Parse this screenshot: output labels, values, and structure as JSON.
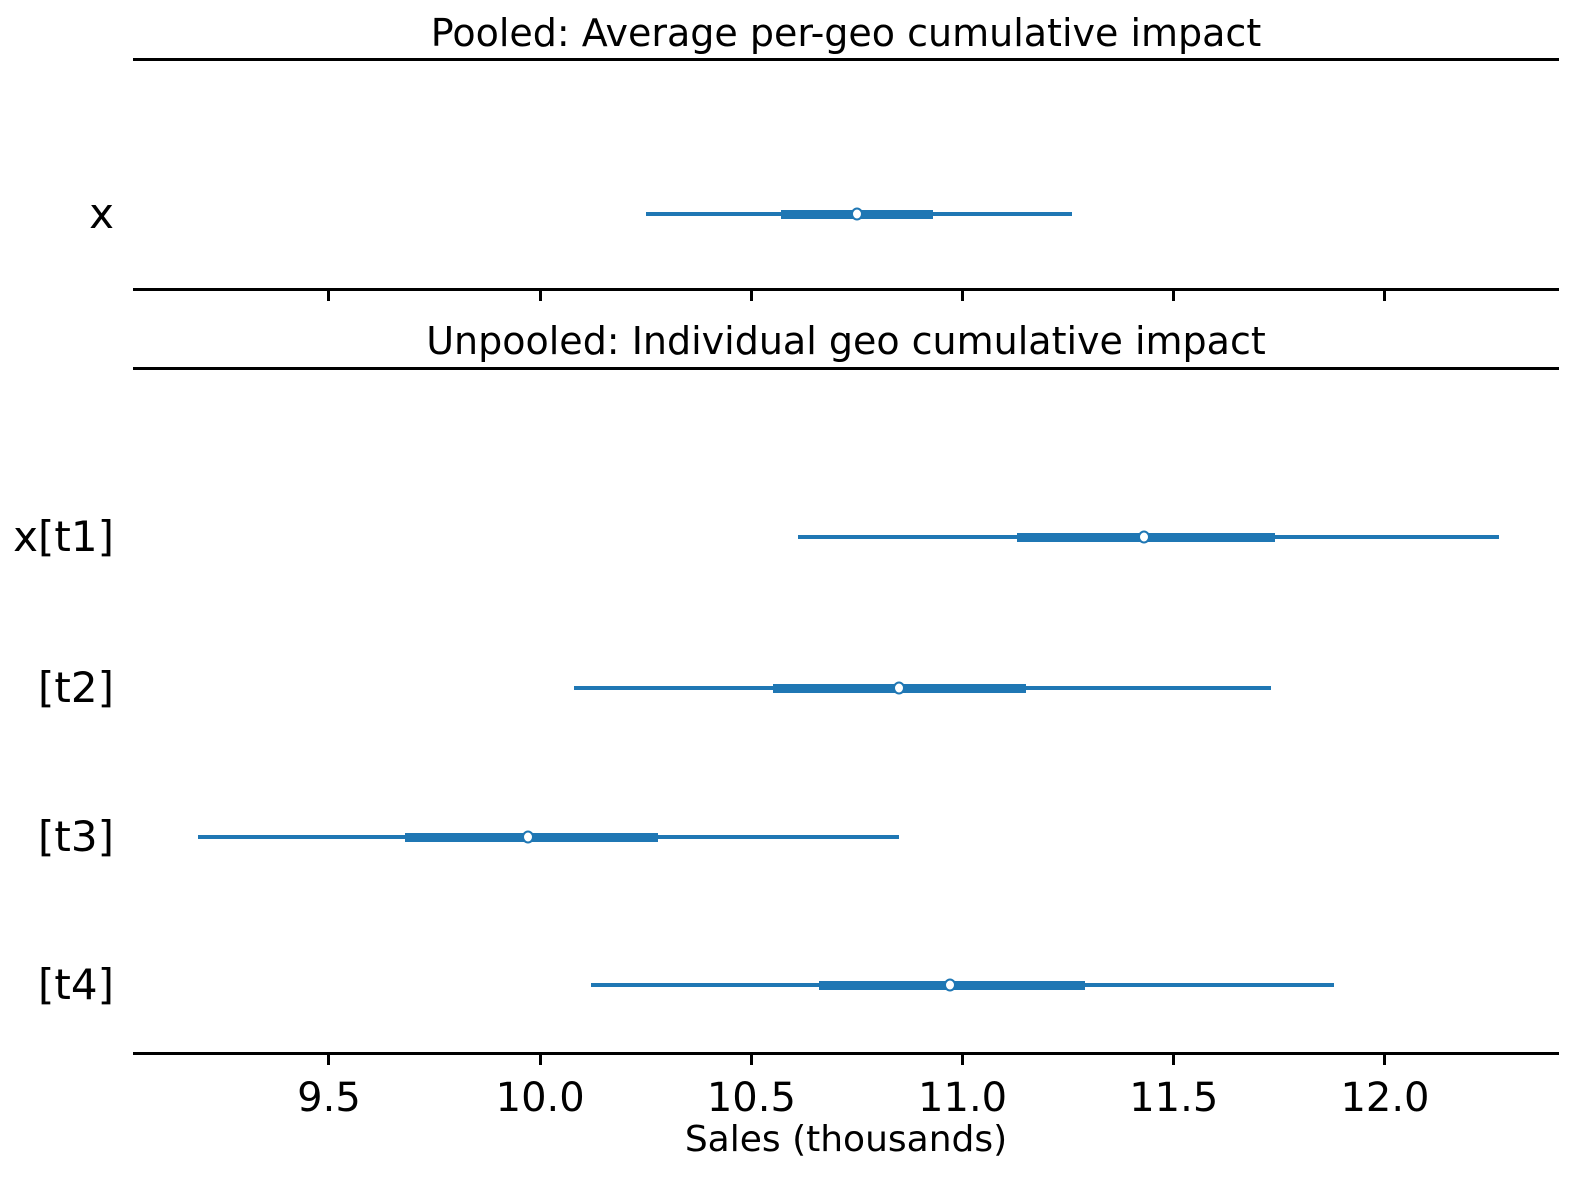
{
  "chart_data": {
    "type": "forest",
    "orientation": "horizontal",
    "xlabel": "Sales (thousands)",
    "xlim": [
      9.036,
      12.412
    ],
    "xticks": [
      9.5,
      10.0,
      10.5,
      11.0,
      11.5,
      12.0
    ],
    "xtick_labels": [
      "9.5",
      "10.0",
      "10.5",
      "11.0",
      "11.5",
      "12.0"
    ],
    "grid": false,
    "legend": "none",
    "accent_color": "#1f77b4",
    "marker": "open-circle",
    "panels": [
      {
        "title": "Pooled: Average per-geo cumulative impact",
        "rows": [
          {
            "label": "x",
            "interval_lo": 10.25,
            "thick_lo": 10.57,
            "median": 10.75,
            "thick_hi": 10.93,
            "interval_hi": 11.26
          }
        ]
      },
      {
        "title": "Unpooled: Individual geo cumulative impact",
        "rows": [
          {
            "label": "x[t1]",
            "interval_lo": 10.61,
            "thick_lo": 11.13,
            "median": 11.43,
            "thick_hi": 11.74,
            "interval_hi": 12.27
          },
          {
            "label": "[t2]",
            "interval_lo": 10.08,
            "thick_lo": 10.55,
            "median": 10.85,
            "thick_hi": 11.15,
            "interval_hi": 11.73
          },
          {
            "label": "[t3]",
            "interval_lo": 9.19,
            "thick_lo": 9.68,
            "median": 9.97,
            "thick_hi": 10.28,
            "interval_hi": 10.85
          },
          {
            "label": "[t4]",
            "interval_lo": 10.12,
            "thick_lo": 10.66,
            "median": 10.97,
            "thick_hi": 11.29,
            "interval_hi": 11.88
          }
        ]
      }
    ]
  }
}
